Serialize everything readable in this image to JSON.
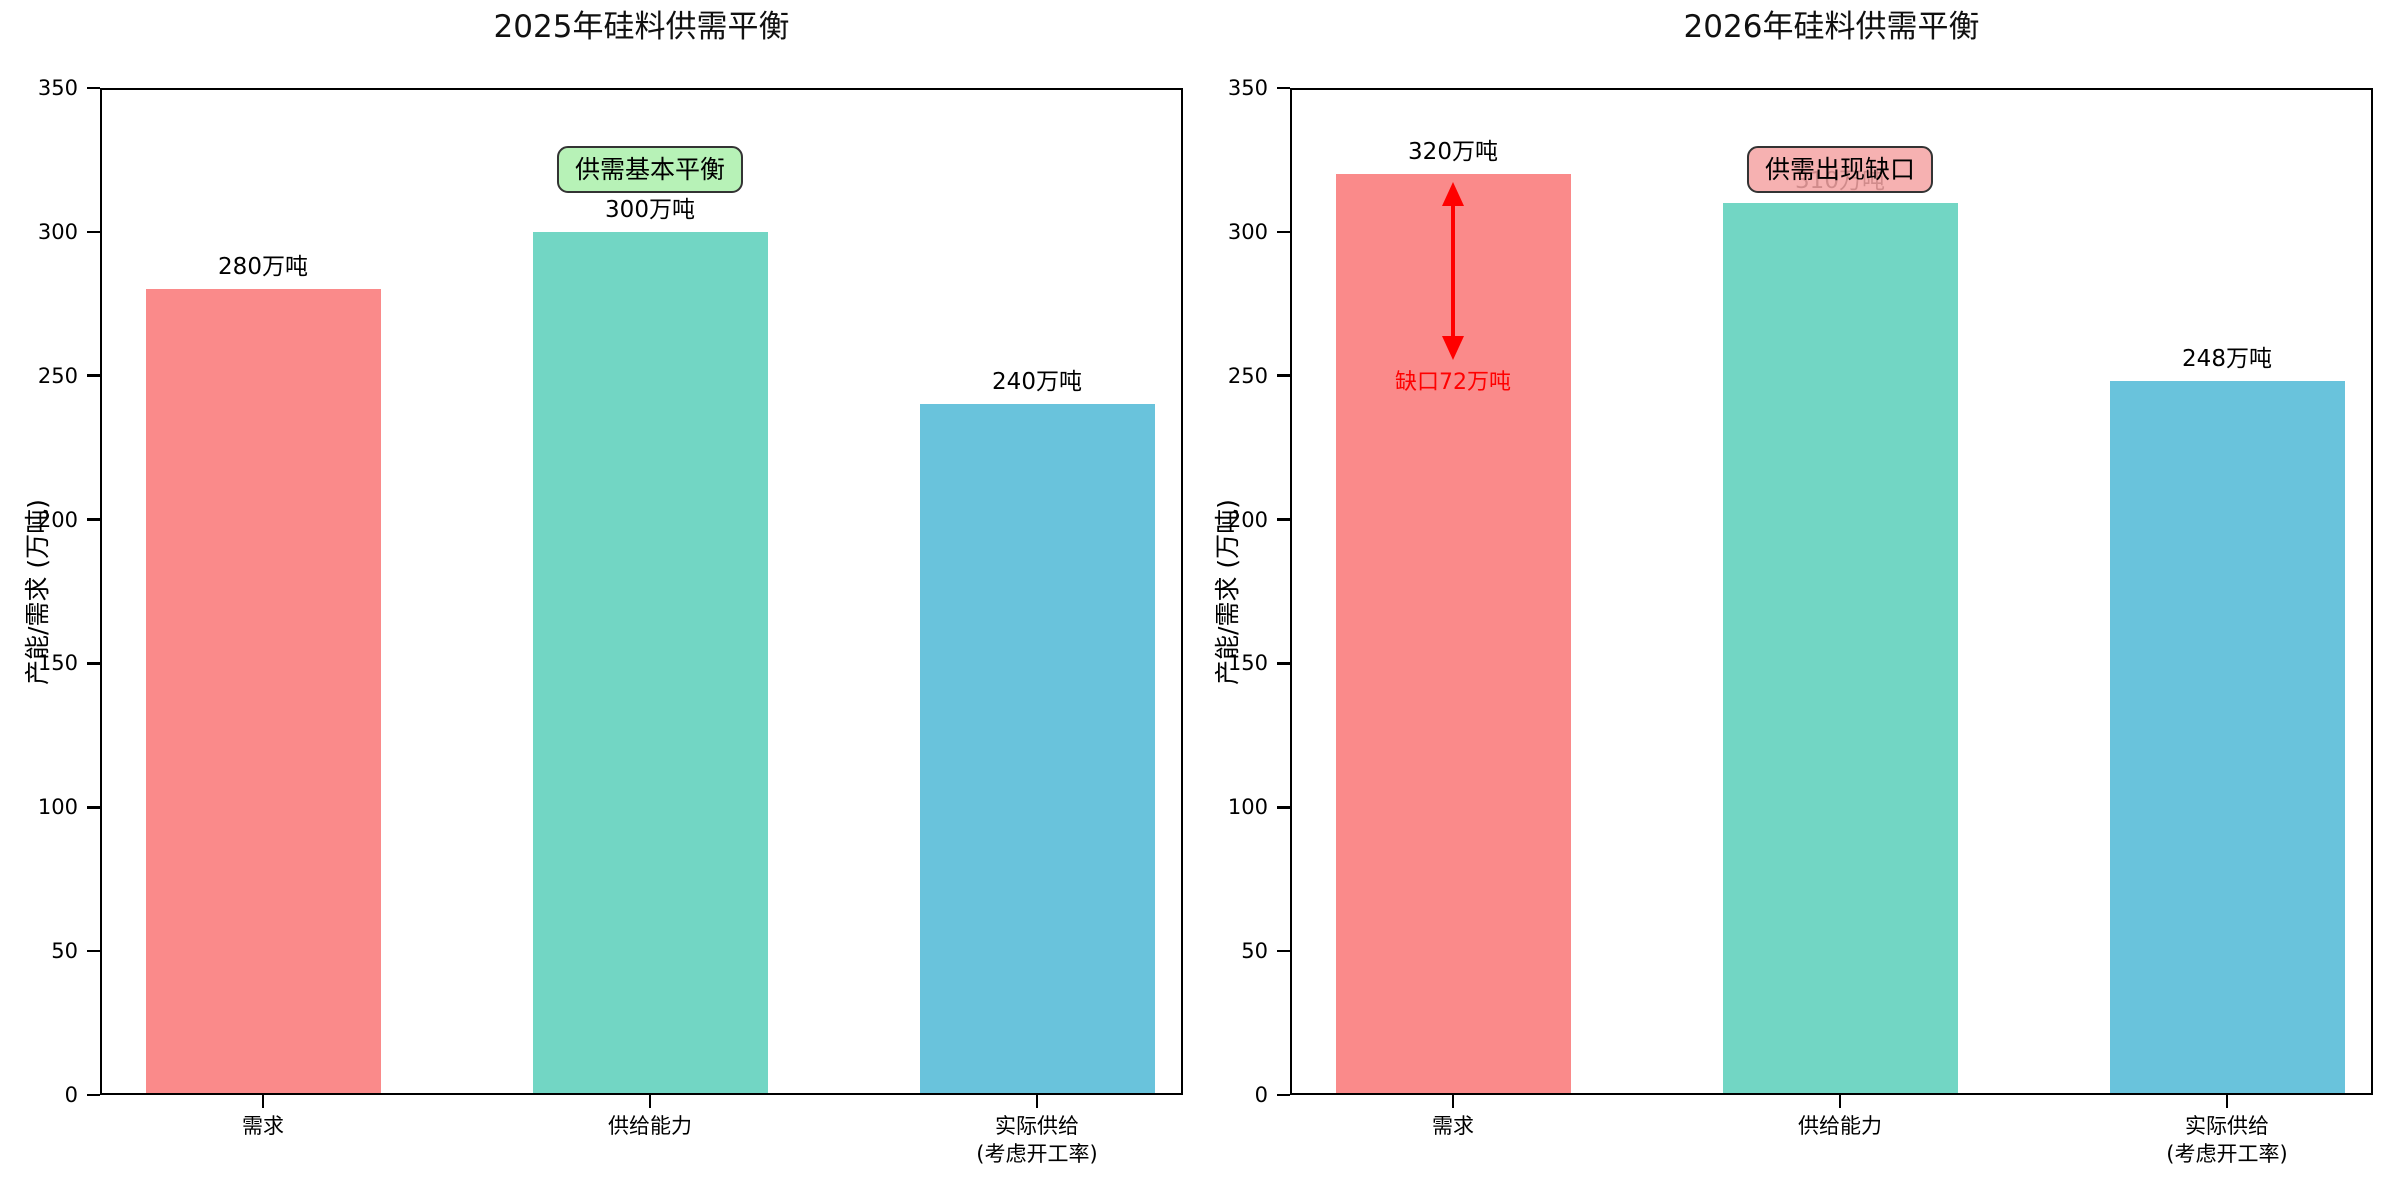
{
  "chart_data": [
    {
      "type": "bar",
      "title": "2025年硅料供需平衡",
      "ylabel": "产能/需求 (万吨)",
      "ylim": [
        0,
        350
      ],
      "yticks": [
        0,
        50,
        100,
        150,
        200,
        250,
        300,
        350
      ],
      "categories": [
        "需求",
        "供给能力",
        "实际供给\n(考虑开工率)"
      ],
      "values": [
        280,
        300,
        240
      ],
      "bar_labels": [
        "280万吨",
        "300万吨",
        "240万吨"
      ],
      "bar_colors": [
        "#FA8A8A",
        "#72D6C4",
        "#69C3DC"
      ],
      "grid": false,
      "legend": null,
      "annotation_box": {
        "text": "供需基本平衡",
        "bg": "#AAF0AA",
        "border": "#333333"
      }
    },
    {
      "type": "bar",
      "title": "2026年硅料供需平衡",
      "ylabel": "产能/需求 (万吨)",
      "ylim": [
        0,
        350
      ],
      "yticks": [
        0,
        50,
        100,
        150,
        200,
        250,
        300,
        350
      ],
      "categories": [
        "需求",
        "供给能力",
        "实际供给\n(考虑开工率)"
      ],
      "values": [
        320,
        310,
        248
      ],
      "bar_labels": [
        "320万吨",
        "310万吨",
        "248万吨"
      ],
      "bar_colors": [
        "#FA8A8A",
        "#72D6C4",
        "#69C3DC"
      ],
      "grid": false,
      "legend": null,
      "annotation_box": {
        "text": "供需出现缺口",
        "bg": "#F5A3A3",
        "border": "#333333"
      },
      "gap_annotation": {
        "text": "缺口72万吨",
        "color": "#FF0000",
        "from_value": 320,
        "to_value": 250,
        "bar_index": 0
      }
    }
  ]
}
